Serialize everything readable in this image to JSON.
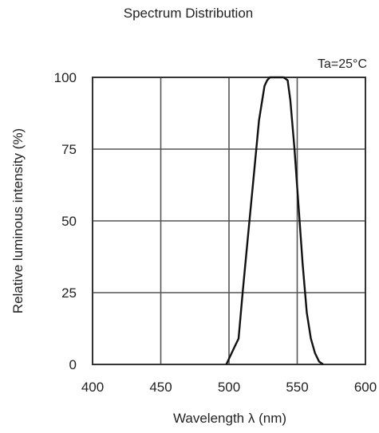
{
  "chart_data": {
    "type": "line",
    "title": "Spectrum Distribution",
    "condition": "Ta=25°C",
    "xlabel": "Wavelength  λ (nm)",
    "ylabel": "Relative luminous intensity   (%)",
    "xlim": [
      400,
      600
    ],
    "ylim": [
      0,
      100
    ],
    "xticks": [
      400,
      450,
      500,
      550,
      600
    ],
    "yticks": [
      0,
      25,
      50,
      75,
      100
    ],
    "grid": true,
    "series": [
      {
        "x": [
          498,
          501,
          504,
          507,
          510,
          514,
          518,
          522,
          526,
          528,
          530,
          533,
          536,
          540,
          543,
          545,
          548,
          551,
          554,
          557,
          560,
          563,
          566,
          569
        ],
        "y": [
          0,
          3,
          6,
          9,
          25,
          45,
          65,
          85,
          97,
          99,
          100,
          100,
          100,
          100,
          99,
          92,
          75,
          55,
          35,
          18,
          9,
          4,
          1,
          0
        ]
      }
    ]
  }
}
